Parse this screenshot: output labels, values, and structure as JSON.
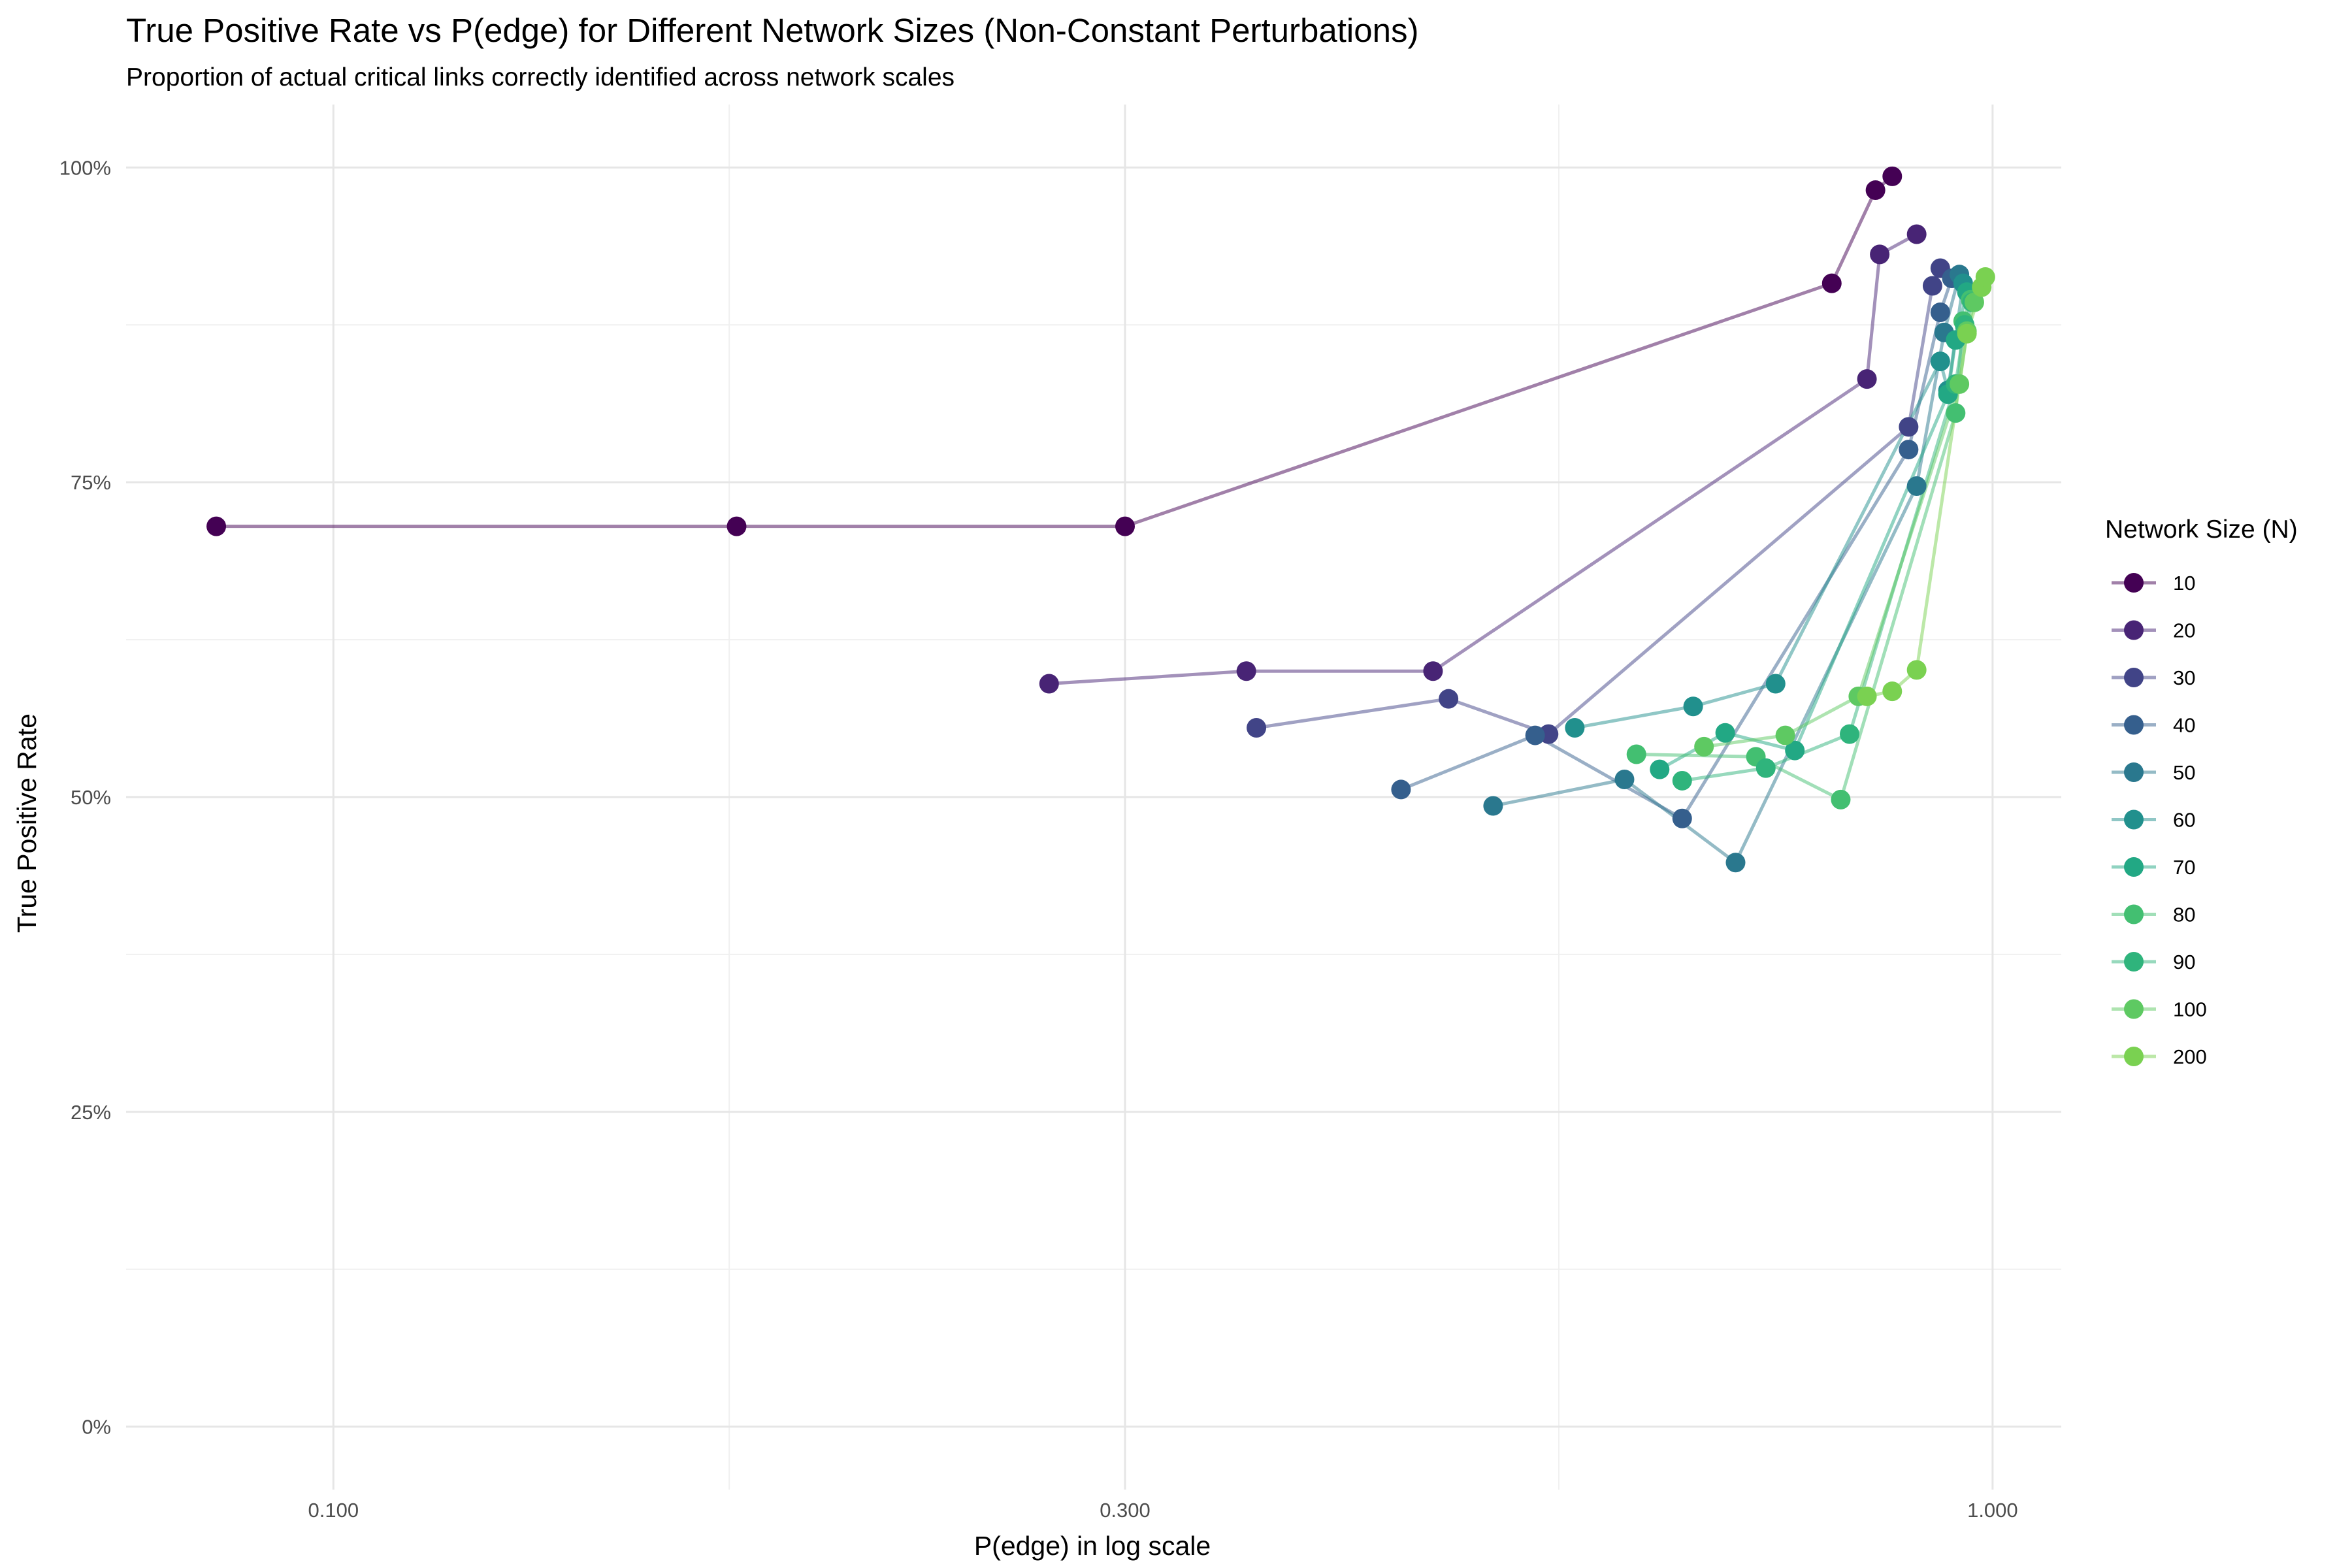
{
  "chart_data": {
    "type": "line",
    "title": "True Positive Rate vs P(edge) for Different Network Sizes (Non-Constant Perturbations)",
    "subtitle": "Proportion of actual critical links correctly identified across network scales",
    "xlabel": "P(edge) in log scale",
    "ylabel": "True Positive Rate",
    "x_scale": "log10",
    "xlim": [
      0.075,
      1.1
    ],
    "ylim": [
      -0.05,
      1.05
    ],
    "x_ticks": [
      0.1,
      0.3,
      1.0
    ],
    "x_tick_labels": [
      "0.100",
      "0.300",
      "1.000"
    ],
    "y_ticks": [
      0,
      0.25,
      0.5,
      0.75,
      1.0
    ],
    "y_tick_labels": [
      "0%",
      "25%",
      "50%",
      "75%",
      "100%"
    ],
    "grid": true,
    "legend": {
      "title": "Network Size (N)",
      "position": "right"
    },
    "series": [
      {
        "name": "10",
        "color": "#440154",
        "x": [
          0.085,
          0.175,
          0.3,
          0.8,
          0.85,
          0.87
        ],
        "y": [
          0.715,
          0.715,
          0.715,
          0.908,
          0.982,
          0.993
        ]
      },
      {
        "name": "20",
        "color": "#482475",
        "x": [
          0.27,
          0.355,
          0.46,
          0.84,
          0.855,
          0.9
        ],
        "y": [
          0.59,
          0.6,
          0.6,
          0.832,
          0.931,
          0.947
        ]
      },
      {
        "name": "30",
        "color": "#414487",
        "x": [
          0.36,
          0.47,
          0.54,
          0.89,
          0.92,
          0.93
        ],
        "y": [
          0.555,
          0.578,
          0.55,
          0.794,
          0.906,
          0.92
        ]
      },
      {
        "name": "40",
        "color": "#355F8D",
        "x": [
          0.44,
          0.53,
          0.65,
          0.89,
          0.93,
          0.945
        ],
        "y": [
          0.506,
          0.549,
          0.483,
          0.776,
          0.885,
          0.912
        ]
      },
      {
        "name": "50",
        "color": "#2A788E",
        "x": [
          0.5,
          0.6,
          0.7,
          0.9,
          0.935,
          0.955
        ],
        "y": [
          0.493,
          0.514,
          0.448,
          0.747,
          0.869,
          0.915
        ]
      },
      {
        "name": "60",
        "color": "#21908D",
        "x": [
          0.56,
          0.66,
          0.74,
          0.93,
          0.94,
          0.96
        ],
        "y": [
          0.555,
          0.572,
          0.59,
          0.846,
          0.823,
          0.908
        ]
      },
      {
        "name": "70",
        "color": "#22A884",
        "x": [
          0.63,
          0.69,
          0.76,
          0.94,
          0.95,
          0.965
        ],
        "y": [
          0.522,
          0.551,
          0.537,
          0.82,
          0.863,
          0.901
        ]
      },
      {
        "name": "80",
        "color": "#43BF71",
        "x": [
          0.61,
          0.72,
          0.81,
          0.95,
          0.96,
          0.97
        ],
        "y": [
          0.534,
          0.532,
          0.498,
          0.805,
          0.878,
          0.895
        ]
      },
      {
        "name": "90",
        "color": "#2FB47C",
        "x": [
          0.65,
          0.73,
          0.82,
          0.95,
          0.962,
          0.972
        ],
        "y": [
          0.513,
          0.523,
          0.55,
          0.828,
          0.875,
          0.893
        ]
      },
      {
        "name": "100",
        "color": "#5EC962",
        "x": [
          0.67,
          0.75,
          0.83,
          0.955,
          0.965,
          0.975
        ],
        "y": [
          0.54,
          0.549,
          0.58,
          0.828,
          0.87,
          0.893
        ]
      },
      {
        "name": "200",
        "color": "#7AD151",
        "x": [
          0.84,
          0.87,
          0.9,
          0.965,
          0.985,
          0.99
        ],
        "y": [
          0.58,
          0.584,
          0.601,
          0.868,
          0.905,
          0.913
        ]
      }
    ]
  }
}
